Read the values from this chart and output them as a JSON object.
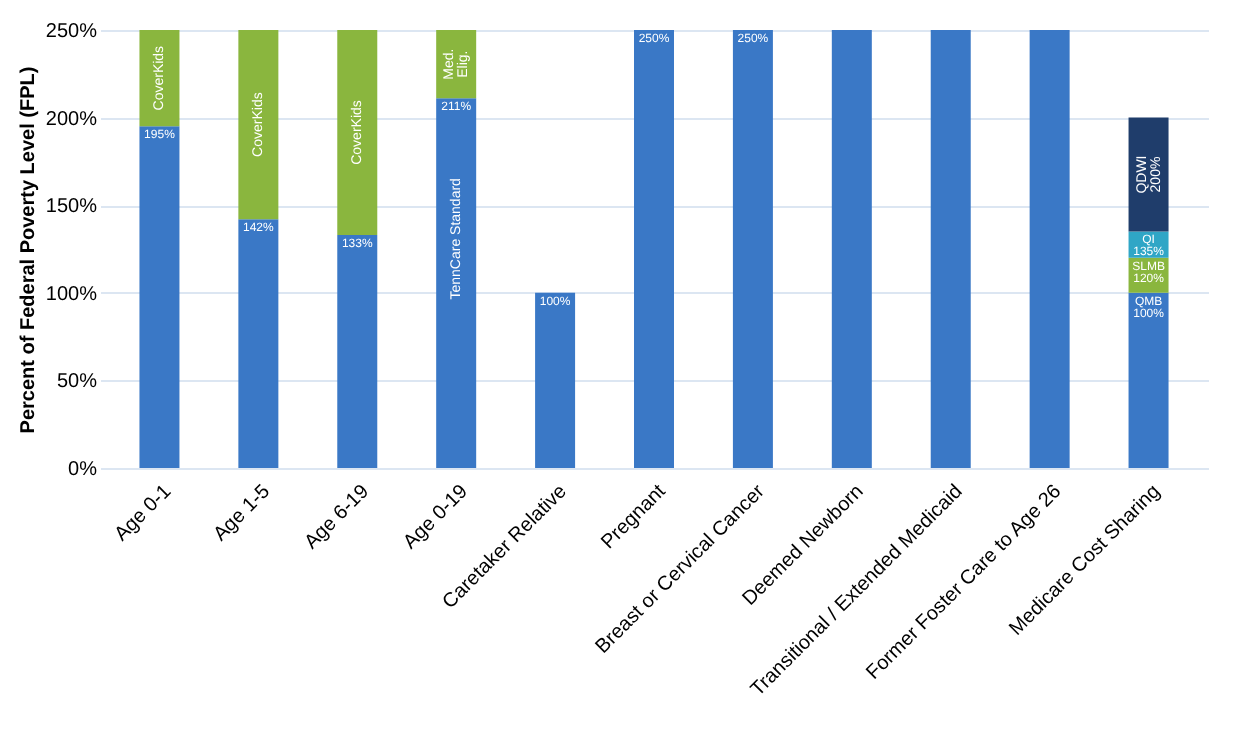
{
  "chart_data": {
    "type": "bar",
    "stacked": true,
    "ylabel": "Percent of Federal Poverty Level (FPL)",
    "categories": [
      "Age 0-1",
      "Age 1-5",
      "Age 6-19",
      "Age 0-19",
      "Caretaker Relative",
      "Pregnant",
      "Breast or Cervical Cancer",
      "Deemed Newborn",
      "Transitional / Extended Medicaid",
      "Former Foster Care to Age 26",
      "Medicare Cost Sharing"
    ],
    "series": [
      {
        "color": "#3a78c6",
        "values": [
          195,
          142,
          133,
          211,
          100,
          250,
          250,
          250,
          250,
          250,
          100
        ],
        "value_labels": [
          "195%",
          "142%",
          "133%",
          "211%",
          "100%",
          "250%",
          "250%",
          null,
          null,
          null,
          "QMB 100%"
        ]
      },
      {
        "color": "#8ab63e",
        "values": [
          55,
          108,
          117,
          39,
          null,
          null,
          null,
          null,
          null,
          null,
          20
        ],
        "value_labels": [
          "CoverKids",
          "CoverKids",
          "CoverKids",
          "Med. Elig.",
          null,
          null,
          null,
          null,
          null,
          null,
          "SLMB 120%"
        ]
      },
      {
        "color": "#2fa6c6",
        "values": [
          null,
          null,
          null,
          null,
          null,
          null,
          null,
          null,
          null,
          null,
          15
        ],
        "value_labels": [
          null,
          null,
          null,
          null,
          null,
          null,
          null,
          null,
          null,
          null,
          "QI 135%"
        ]
      },
      {
        "color": "#1f3d6b",
        "values": [
          null,
          null,
          null,
          null,
          null,
          null,
          null,
          null,
          null,
          null,
          65
        ],
        "value_labels": [
          null,
          null,
          null,
          null,
          null,
          null,
          null,
          null,
          null,
          null,
          "QDWI 200%"
        ]
      }
    ],
    "annotations": [
      "TennCare Standard"
    ],
    "ylim": [
      0,
      250
    ],
    "yticks": [
      {
        "value": 0,
        "label": "0%"
      },
      {
        "value": 50,
        "label": "50%"
      },
      {
        "value": 100,
        "label": "100%"
      },
      {
        "value": 150,
        "label": "150%"
      },
      {
        "value": 200,
        "label": "200%"
      },
      {
        "value": 250,
        "label": "250%"
      }
    ],
    "grid": "y"
  }
}
